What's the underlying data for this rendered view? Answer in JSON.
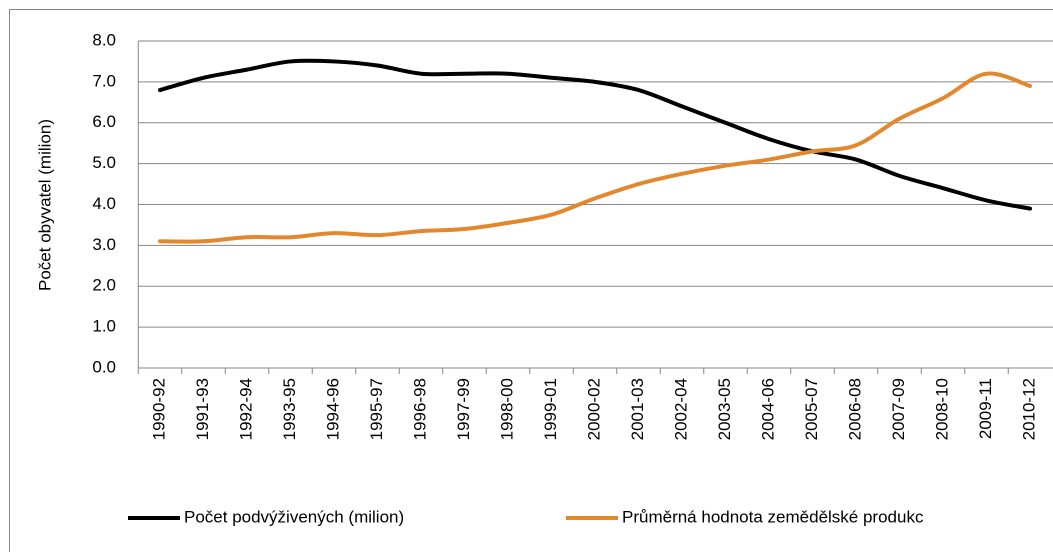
{
  "chart_data": {
    "type": "line",
    "ylabel": "Počet obyvatel (milion)",
    "categories": [
      "1990-92",
      "1991-93",
      "1992-94",
      "1993-95",
      "1994-96",
      "1995-97",
      "1996-98",
      "1997-99",
      "1998-00",
      "1999-01",
      "2000-02",
      "2001-03",
      "2002-04",
      "2003-05",
      "2004-06",
      "2005-07",
      "2006-08",
      "2007-09",
      "2008-10",
      "2009-11",
      "2010-12"
    ],
    "series": [
      {
        "name": "Počet podvýživených (milion)",
        "color": "#000000",
        "values": [
          6.8,
          7.1,
          7.3,
          7.5,
          7.5,
          7.4,
          7.2,
          7.2,
          7.2,
          7.1,
          7.0,
          6.8,
          6.4,
          6.0,
          5.6,
          5.3,
          5.1,
          4.7,
          4.4,
          4.1,
          3.9
        ]
      },
      {
        "name": "Průměrná hodnota zemědělské produkc",
        "color": "#e3872d",
        "values": [
          3.1,
          3.1,
          3.2,
          3.2,
          3.3,
          3.25,
          3.35,
          3.4,
          3.55,
          3.75,
          4.15,
          4.5,
          4.75,
          4.95,
          5.1,
          5.3,
          5.45,
          6.1,
          6.6,
          7.2,
          6.9
        ]
      }
    ],
    "ylim": [
      0,
      8
    ],
    "yticks": [
      {
        "value": 0,
        "label": "0.0"
      },
      {
        "value": 1,
        "label": "1.0"
      },
      {
        "value": 2,
        "label": "2.0"
      },
      {
        "value": 3,
        "label": "3.0"
      },
      {
        "value": 4,
        "label": "4.0"
      },
      {
        "value": 5,
        "label": "5.0"
      },
      {
        "value": 6,
        "label": "6.0"
      },
      {
        "value": 7,
        "label": "7.0"
      },
      {
        "value": 8,
        "label": "8.0"
      }
    ],
    "grid": true
  }
}
